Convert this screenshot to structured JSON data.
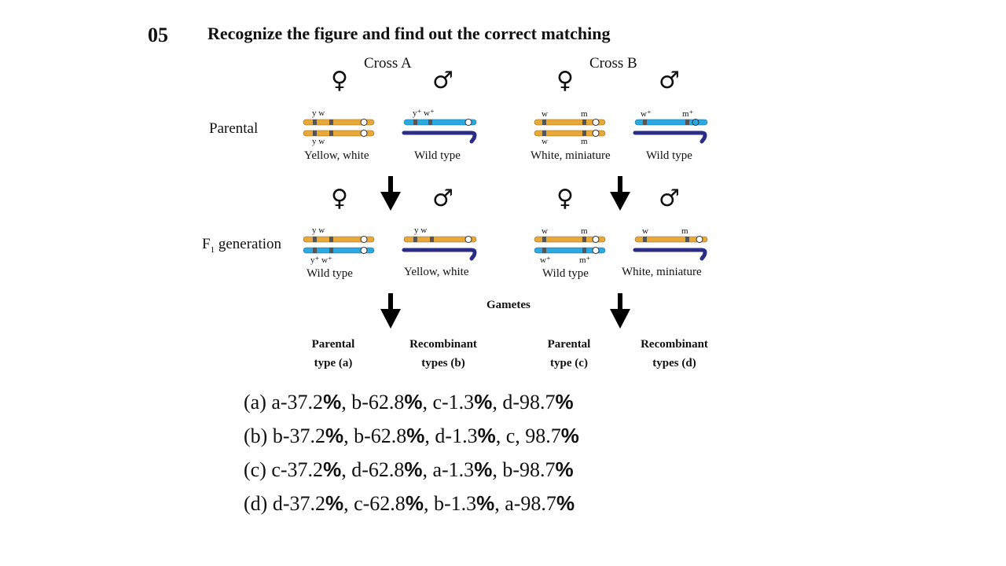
{
  "question": {
    "number": "05",
    "text": "Recognize the figure and find out the correct matching"
  },
  "figure": {
    "cross_a": {
      "title": "Cross A",
      "female_symbol": "♀",
      "male_symbol": "♂",
      "parental_female_top_genes": "y w",
      "parental_female_bottom_genes": "y w",
      "parental_female_phenotype": "Yellow, white",
      "parental_male_genes": "y⁺ w⁺",
      "parental_male_phenotype": "Wild type",
      "f1_female_top_genes": "y w",
      "f1_female_bottom_genes": "y⁺ w⁺",
      "f1_female_phenotype": "Wild type",
      "f1_male_genes": "y w",
      "f1_male_phenotype": "Yellow, white",
      "parental_type": [
        "Parental",
        "type (a)"
      ],
      "recombinant_type": [
        "Recombinant",
        "types (b)"
      ]
    },
    "cross_b": {
      "title": "Cross B",
      "female_symbol": "♀",
      "male_symbol": "♂",
      "parental_female_top_genes": [
        "w",
        "m"
      ],
      "parental_female_bottom_genes": [
        "w",
        "m"
      ],
      "parental_female_phenotype": "White, miniature",
      "parental_male_genes": [
        "w⁺",
        "m⁺"
      ],
      "parental_male_phenotype": "Wild type",
      "f1_female_top_genes": [
        "w",
        "m"
      ],
      "f1_female_bottom_genes": [
        "w⁺",
        "m⁺"
      ],
      "f1_female_phenotype": "Wild type",
      "f1_male_genes": [
        "w",
        "m"
      ],
      "f1_male_phenotype": "White, miniature",
      "parental_type": [
        "Parental",
        "type (c)"
      ],
      "recombinant_type": [
        "Recombinant",
        "types (d)"
      ]
    },
    "row_labels": {
      "parental": "Parental",
      "f1_main": "F",
      "f1_sub": "1",
      "f1_rest": " generation"
    },
    "gametes_label": "Gametes",
    "colors": {
      "orange_chromosome": "#E8A93A",
      "light_blue_chromosome": "#2BA9E0",
      "dark_blue_chromosome": "#2A2C86",
      "gene_band": "#555555"
    }
  },
  "options": [
    {
      "prefix": "(a) a-37.2",
      "p1": "%",
      "m1": ", b-62.8",
      "p2": "%",
      "m2": ", c-1.3",
      "p3": "%",
      "m3": ", d-98.7",
      "p4": "%"
    },
    {
      "prefix": "(b) b-37.2",
      "p1": "%",
      "m1": ", b-62.8",
      "p2": "%",
      "m2": ", d-1.3",
      "p3": "%",
      "m3": ", c, 98.7",
      "p4": "%"
    },
    {
      "prefix": "(c) c-37.2",
      "p1": "%",
      "m1": ", d-62.8",
      "p2": "%",
      "m2": ", a-1.3",
      "p3": "%",
      "m3": ", b-98.7",
      "p4": "%"
    },
    {
      "prefix": "(d) d-37.2",
      "p1": "%",
      "m1": ", c-62.8",
      "p2": "%",
      "m2": ", b-1.3",
      "p3": "%",
      "m3": ", a-98.7",
      "p4": "%"
    }
  ]
}
